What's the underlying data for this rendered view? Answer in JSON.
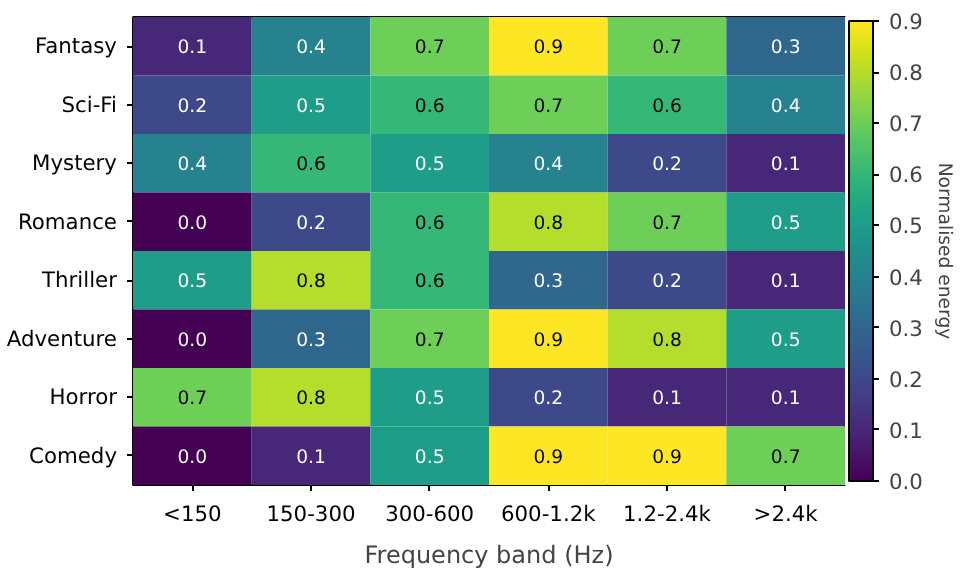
{
  "chart_data": {
    "type": "heatmap",
    "xlabel": "Frequency band (Hz)",
    "clabel": "Normalised energy",
    "categories": [
      "<150",
      "150-300",
      "300-600",
      "600-1.2k",
      "1.2-2.4k",
      ">2.4k"
    ],
    "y_categories": [
      "Fantasy",
      "Sci-Fi",
      "Mystery",
      "Romance",
      "Thriller",
      "Adventure",
      "Horror",
      "Comedy"
    ],
    "cells": [
      [
        0.1,
        0.4,
        0.7,
        0.9,
        0.7,
        0.3
      ],
      [
        0.2,
        0.5,
        0.6,
        0.7,
        0.6,
        0.4
      ],
      [
        0.4,
        0.6,
        0.5,
        0.4,
        0.2,
        0.1
      ],
      [
        0.0,
        0.2,
        0.6,
        0.8,
        0.7,
        0.5
      ],
      [
        0.5,
        0.8,
        0.6,
        0.3,
        0.2,
        0.1
      ],
      [
        0.0,
        0.3,
        0.7,
        0.9,
        0.8,
        0.5
      ],
      [
        0.7,
        0.8,
        0.5,
        0.2,
        0.1,
        0.1
      ],
      [
        0.0,
        0.1,
        0.5,
        0.9,
        0.9,
        0.7
      ]
    ],
    "cell_labels": [
      [
        "0.1",
        "0.4",
        "0.7",
        "0.9",
        "0.7",
        "0.3"
      ],
      [
        "0.2",
        "0.5",
        "0.6",
        "0.7",
        "0.6",
        "0.4"
      ],
      [
        "0.4",
        "0.6",
        "0.5",
        "0.4",
        "0.2",
        "0.1"
      ],
      [
        "0.0",
        "0.2",
        "0.6",
        "0.8",
        "0.7",
        "0.5"
      ],
      [
        "0.5",
        "0.8",
        "0.6",
        "0.3",
        "0.2",
        "0.1"
      ],
      [
        "0.0",
        "0.3",
        "0.7",
        "0.9",
        "0.8",
        "0.5"
      ],
      [
        "0.7",
        "0.8",
        "0.5",
        "0.2",
        "0.1",
        "0.1"
      ],
      [
        "0.0",
        "0.1",
        "0.5",
        "0.9",
        "0.9",
        "0.7"
      ]
    ],
    "clim": [
      0,
      0.9
    ],
    "cticks": [
      {
        "value": 0,
        "label": "0.0"
      },
      {
        "value": 0.1,
        "label": "0.1"
      },
      {
        "value": 0.2,
        "label": "0.2"
      },
      {
        "value": 0.3,
        "label": "0.3"
      },
      {
        "value": 0.4,
        "label": "0.4"
      },
      {
        "value": 0.5,
        "label": "0.5"
      },
      {
        "value": 0.6,
        "label": "0.6"
      },
      {
        "value": 0.7,
        "label": "0.7"
      },
      {
        "value": 0.8,
        "label": "0.8"
      },
      {
        "value": 0.9,
        "label": "0.9"
      }
    ]
  }
}
